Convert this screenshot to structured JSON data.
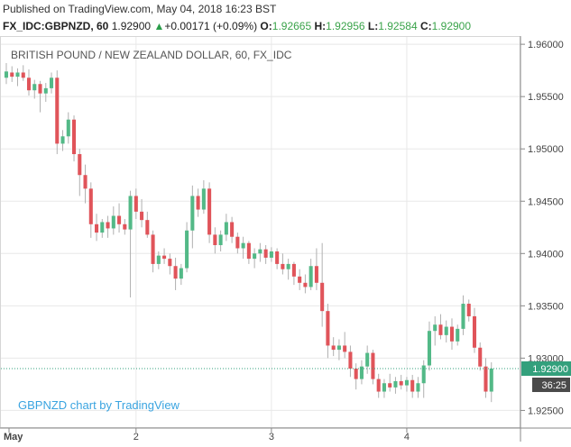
{
  "header": {
    "published": "Published on TradingView.com, May 04, 2018 16:23 BST",
    "symbol": "FX_IDC:GBPNZD, 60",
    "last": "1.92900",
    "arrow": "▲",
    "change": "+0.00171 (+0.09%)",
    "o_label": "O:",
    "o_value": "1.92665",
    "h_label": "H:",
    "h_value": "1.92956",
    "l_label": "L:",
    "l_value": "1.92584",
    "c_label": "C:",
    "c_value": "1.92900"
  },
  "chart_title": "BRITISH POUND / NEW ZEALAND DOLLAR, 60, FX_IDC",
  "watermark": "GBPNZD chart by TradingView",
  "price_badge": "1.92900",
  "countdown_badge": "36:25",
  "colors": {
    "up": "#53b987",
    "down": "#e0545a",
    "wick": "#b0b0b0",
    "badge": "#33a07c",
    "countdown": "#4a4a4a",
    "grid": "#e8e8e8",
    "watermark": "#3aa4e0"
  },
  "chart_data": {
    "type": "candlestick",
    "title": "BRITISH POUND / NEW ZEALAND DOLLAR, 60, FX_IDC",
    "y_ticks": [
      "1.96000",
      "1.95500",
      "1.95000",
      "1.94500",
      "1.94000",
      "1.93500",
      "1.93000",
      "1.92500"
    ],
    "y_range": [
      1.9234,
      1.9607
    ],
    "x_ticks": [
      {
        "label": "May",
        "index": 0
      },
      {
        "label": "2",
        "index": 23
      },
      {
        "label": "3",
        "index": 47
      },
      {
        "label": "4",
        "index": 71
      }
    ],
    "last_price": 1.929,
    "candles": [
      {
        "o": 1.9568,
        "h": 1.9582,
        "l": 1.9562,
        "c": 1.9574
      },
      {
        "o": 1.9573,
        "h": 1.9579,
        "l": 1.9564,
        "c": 1.9569
      },
      {
        "o": 1.9569,
        "h": 1.9577,
        "l": 1.956,
        "c": 1.9573
      },
      {
        "o": 1.9573,
        "h": 1.958,
        "l": 1.9565,
        "c": 1.9568
      },
      {
        "o": 1.9568,
        "h": 1.9576,
        "l": 1.9551,
        "c": 1.9556
      },
      {
        "o": 1.9556,
        "h": 1.9566,
        "l": 1.9548,
        "c": 1.9562
      },
      {
        "o": 1.9562,
        "h": 1.9565,
        "l": 1.9535,
        "c": 1.9553
      },
      {
        "o": 1.9553,
        "h": 1.9563,
        "l": 1.9545,
        "c": 1.9558
      },
      {
        "o": 1.9558,
        "h": 1.9573,
        "l": 1.9553,
        "c": 1.9568
      },
      {
        "o": 1.9568,
        "h": 1.9575,
        "l": 1.9495,
        "c": 1.9505
      },
      {
        "o": 1.9505,
        "h": 1.9518,
        "l": 1.9498,
        "c": 1.9512
      },
      {
        "o": 1.9512,
        "h": 1.9535,
        "l": 1.9505,
        "c": 1.9528
      },
      {
        "o": 1.9528,
        "h": 1.9532,
        "l": 1.9488,
        "c": 1.9495
      },
      {
        "o": 1.9495,
        "h": 1.95,
        "l": 1.9455,
        "c": 1.9475
      },
      {
        "o": 1.9475,
        "h": 1.9485,
        "l": 1.9448,
        "c": 1.9462
      },
      {
        "o": 1.9462,
        "h": 1.9468,
        "l": 1.9415,
        "c": 1.9428
      },
      {
        "o": 1.9428,
        "h": 1.9438,
        "l": 1.9412,
        "c": 1.942
      },
      {
        "o": 1.942,
        "h": 1.9433,
        "l": 1.9415,
        "c": 1.943
      },
      {
        "o": 1.943,
        "h": 1.9436,
        "l": 1.9415,
        "c": 1.9424
      },
      {
        "o": 1.9424,
        "h": 1.9445,
        "l": 1.9418,
        "c": 1.9436
      },
      {
        "o": 1.9436,
        "h": 1.9448,
        "l": 1.942,
        "c": 1.9428
      },
      {
        "o": 1.9428,
        "h": 1.9433,
        "l": 1.9418,
        "c": 1.9423
      },
      {
        "o": 1.9423,
        "h": 1.946,
        "l": 1.9358,
        "c": 1.9455
      },
      {
        "o": 1.9455,
        "h": 1.9462,
        "l": 1.9433,
        "c": 1.944
      },
      {
        "o": 1.944,
        "h": 1.9452,
        "l": 1.9425,
        "c": 1.9432
      },
      {
        "o": 1.9432,
        "h": 1.944,
        "l": 1.9415,
        "c": 1.9418
      },
      {
        "o": 1.9418,
        "h": 1.9422,
        "l": 1.9382,
        "c": 1.939
      },
      {
        "o": 1.939,
        "h": 1.9402,
        "l": 1.9385,
        "c": 1.9398
      },
      {
        "o": 1.9398,
        "h": 1.9405,
        "l": 1.939,
        "c": 1.9395
      },
      {
        "o": 1.9395,
        "h": 1.94,
        "l": 1.938,
        "c": 1.9388
      },
      {
        "o": 1.9388,
        "h": 1.9396,
        "l": 1.9365,
        "c": 1.9376
      },
      {
        "o": 1.9376,
        "h": 1.939,
        "l": 1.937,
        "c": 1.9386
      },
      {
        "o": 1.9386,
        "h": 1.943,
        "l": 1.9382,
        "c": 1.9422
      },
      {
        "o": 1.9422,
        "h": 1.9465,
        "l": 1.9405,
        "c": 1.9455
      },
      {
        "o": 1.9455,
        "h": 1.9462,
        "l": 1.9435,
        "c": 1.9442
      },
      {
        "o": 1.9442,
        "h": 1.947,
        "l": 1.9438,
        "c": 1.9462
      },
      {
        "o": 1.9462,
        "h": 1.9468,
        "l": 1.941,
        "c": 1.9418
      },
      {
        "o": 1.9418,
        "h": 1.9425,
        "l": 1.94,
        "c": 1.9408
      },
      {
        "o": 1.9408,
        "h": 1.9422,
        "l": 1.9402,
        "c": 1.9418
      },
      {
        "o": 1.9418,
        "h": 1.9438,
        "l": 1.9412,
        "c": 1.943
      },
      {
        "o": 1.943,
        "h": 1.9435,
        "l": 1.941,
        "c": 1.9416
      },
      {
        "o": 1.9416,
        "h": 1.942,
        "l": 1.94,
        "c": 1.9405
      },
      {
        "o": 1.9405,
        "h": 1.9416,
        "l": 1.9395,
        "c": 1.941
      },
      {
        "o": 1.941,
        "h": 1.9412,
        "l": 1.939,
        "c": 1.9395
      },
      {
        "o": 1.9395,
        "h": 1.9405,
        "l": 1.9386,
        "c": 1.94
      },
      {
        "o": 1.94,
        "h": 1.941,
        "l": 1.9392,
        "c": 1.9404
      },
      {
        "o": 1.9404,
        "h": 1.9408,
        "l": 1.939,
        "c": 1.9396
      },
      {
        "o": 1.9396,
        "h": 1.9406,
        "l": 1.9392,
        "c": 1.9402
      },
      {
        "o": 1.9402,
        "h": 1.9405,
        "l": 1.9385,
        "c": 1.939
      },
      {
        "o": 1.939,
        "h": 1.94,
        "l": 1.938,
        "c": 1.9385
      },
      {
        "o": 1.9385,
        "h": 1.9395,
        "l": 1.9375,
        "c": 1.939
      },
      {
        "o": 1.939,
        "h": 1.9392,
        "l": 1.937,
        "c": 1.9378
      },
      {
        "o": 1.9378,
        "h": 1.9385,
        "l": 1.9365,
        "c": 1.9372
      },
      {
        "o": 1.9372,
        "h": 1.938,
        "l": 1.9362,
        "c": 1.9368
      },
      {
        "o": 1.9368,
        "h": 1.9395,
        "l": 1.9365,
        "c": 1.9388
      },
      {
        "o": 1.9388,
        "h": 1.9405,
        "l": 1.9365,
        "c": 1.9372
      },
      {
        "o": 1.9372,
        "h": 1.941,
        "l": 1.933,
        "c": 1.9345
      },
      {
        "o": 1.9345,
        "h": 1.9352,
        "l": 1.93,
        "c": 1.9312
      },
      {
        "o": 1.9312,
        "h": 1.932,
        "l": 1.9302,
        "c": 1.9308
      },
      {
        "o": 1.9308,
        "h": 1.9318,
        "l": 1.9298,
        "c": 1.9312
      },
      {
        "o": 1.9312,
        "h": 1.9325,
        "l": 1.93,
        "c": 1.9306
      },
      {
        "o": 1.9306,
        "h": 1.9312,
        "l": 1.9282,
        "c": 1.929
      },
      {
        "o": 1.929,
        "h": 1.9295,
        "l": 1.927,
        "c": 1.928
      },
      {
        "o": 1.928,
        "h": 1.9298,
        "l": 1.9275,
        "c": 1.9292
      },
      {
        "o": 1.9292,
        "h": 1.9312,
        "l": 1.9285,
        "c": 1.9305
      },
      {
        "o": 1.9305,
        "h": 1.9308,
        "l": 1.9275,
        "c": 1.928
      },
      {
        "o": 1.928,
        "h": 1.9285,
        "l": 1.9262,
        "c": 1.9268
      },
      {
        "o": 1.9268,
        "h": 1.928,
        "l": 1.9262,
        "c": 1.9276
      },
      {
        "o": 1.9276,
        "h": 1.9285,
        "l": 1.9268,
        "c": 1.9272
      },
      {
        "o": 1.9272,
        "h": 1.9282,
        "l": 1.9266,
        "c": 1.9278
      },
      {
        "o": 1.9278,
        "h": 1.9284,
        "l": 1.927,
        "c": 1.9274
      },
      {
        "o": 1.9274,
        "h": 1.9282,
        "l": 1.9268,
        "c": 1.9279
      },
      {
        "o": 1.9279,
        "h": 1.9284,
        "l": 1.9262,
        "c": 1.9268
      },
      {
        "o": 1.9268,
        "h": 1.9282,
        "l": 1.9262,
        "c": 1.9276
      },
      {
        "o": 1.9276,
        "h": 1.9298,
        "l": 1.9262,
        "c": 1.9293
      },
      {
        "o": 1.9293,
        "h": 1.9335,
        "l": 1.9288,
        "c": 1.9326
      },
      {
        "o": 1.9326,
        "h": 1.934,
        "l": 1.9312,
        "c": 1.9332
      },
      {
        "o": 1.9332,
        "h": 1.9342,
        "l": 1.9318,
        "c": 1.9322
      },
      {
        "o": 1.9322,
        "h": 1.9336,
        "l": 1.9315,
        "c": 1.933
      },
      {
        "o": 1.933,
        "h": 1.9338,
        "l": 1.9308,
        "c": 1.9316
      },
      {
        "o": 1.9316,
        "h": 1.9332,
        "l": 1.9312,
        "c": 1.9328
      },
      {
        "o": 1.9328,
        "h": 1.936,
        "l": 1.9322,
        "c": 1.9352
      },
      {
        "o": 1.9352,
        "h": 1.9356,
        "l": 1.9335,
        "c": 1.934
      },
      {
        "o": 1.934,
        "h": 1.9348,
        "l": 1.9305,
        "c": 1.931
      },
      {
        "o": 1.931,
        "h": 1.9315,
        "l": 1.9288,
        "c": 1.9292
      },
      {
        "o": 1.9292,
        "h": 1.93,
        "l": 1.9262,
        "c": 1.9268
      },
      {
        "o": 1.9268,
        "h": 1.9296,
        "l": 1.9258,
        "c": 1.929
      }
    ]
  }
}
